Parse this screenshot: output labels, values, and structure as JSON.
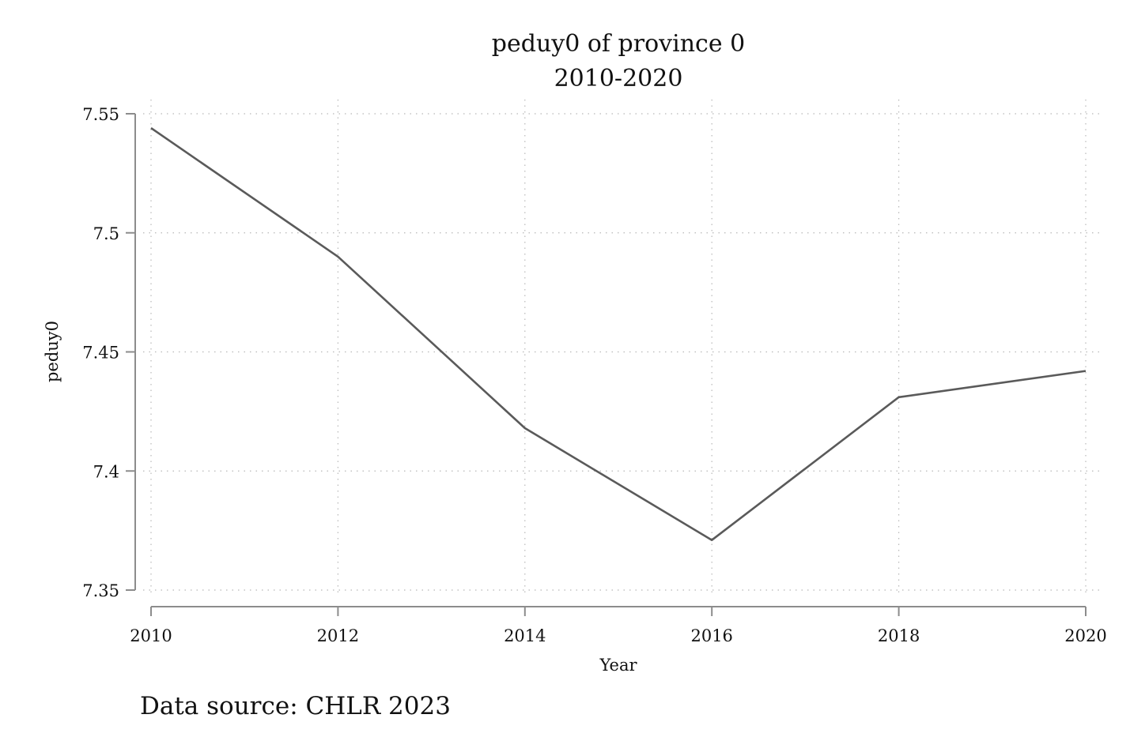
{
  "chart_data": {
    "type": "line",
    "title": "peduy0 of province 0",
    "subtitle": "2010-2020",
    "xlabel": "Year",
    "ylabel": "peduy0",
    "note": "Data source: CHLR 2023",
    "x": [
      2010,
      2012,
      2014,
      2016,
      2018,
      2020
    ],
    "series": [
      {
        "values": [
          7.544,
          7.49,
          7.418,
          7.371,
          7.431,
          7.442
        ]
      }
    ],
    "xlim": [
      2010,
      2020
    ],
    "ylim": [
      7.35,
      7.55
    ],
    "xticks": [
      "2010",
      "2012",
      "2014",
      "2016",
      "2018",
      "2020"
    ],
    "yticks": [
      "7.35",
      "7.4",
      "7.45",
      "7.5",
      "7.55"
    ],
    "grid": true,
    "legend": "none",
    "colors": {
      "line": "#5a5a5a",
      "axis": "#8c8c8c",
      "grid": "#b8b8b8"
    }
  }
}
